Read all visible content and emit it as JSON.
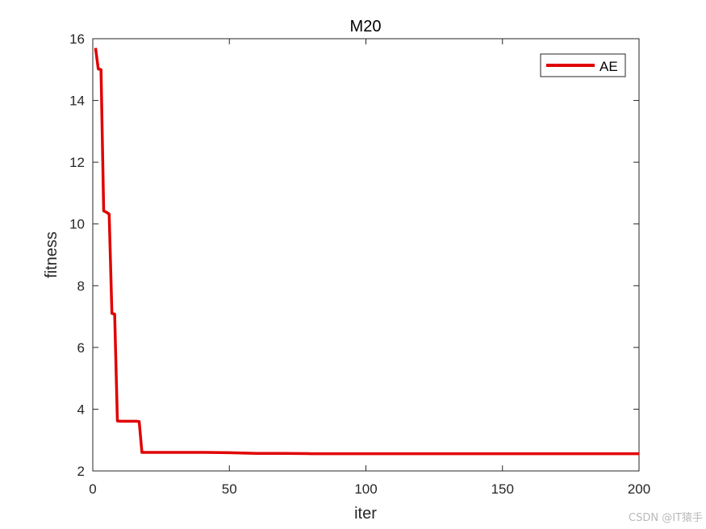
{
  "chart_data": {
    "type": "line",
    "title": "M20",
    "xlabel": "iter",
    "ylabel": "fitness",
    "xlim": [
      0,
      200
    ],
    "ylim": [
      2,
      16
    ],
    "xticks": [
      0,
      50,
      100,
      150,
      200
    ],
    "yticks": [
      2,
      4,
      6,
      8,
      10,
      12,
      14,
      16
    ],
    "grid": false,
    "legend_position": "top-right",
    "series": [
      {
        "name": "AE",
        "color": "#e00000",
        "x": [
          1,
          2,
          3,
          4,
          5,
          6,
          7,
          8,
          9,
          10,
          11,
          12,
          13,
          14,
          15,
          16,
          17,
          18,
          19,
          20,
          30,
          40,
          50,
          60,
          70,
          80,
          90,
          100,
          150,
          200
        ],
        "y": [
          15.7,
          15.02,
          15.0,
          10.42,
          10.38,
          10.32,
          7.1,
          7.08,
          3.62,
          3.61,
          3.61,
          3.61,
          3.61,
          3.61,
          3.61,
          3.61,
          3.6,
          2.6,
          2.6,
          2.6,
          2.6,
          2.6,
          2.59,
          2.57,
          2.57,
          2.56,
          2.56,
          2.56,
          2.56,
          2.56
        ]
      }
    ]
  },
  "watermark": "CSDN @IT猿手"
}
